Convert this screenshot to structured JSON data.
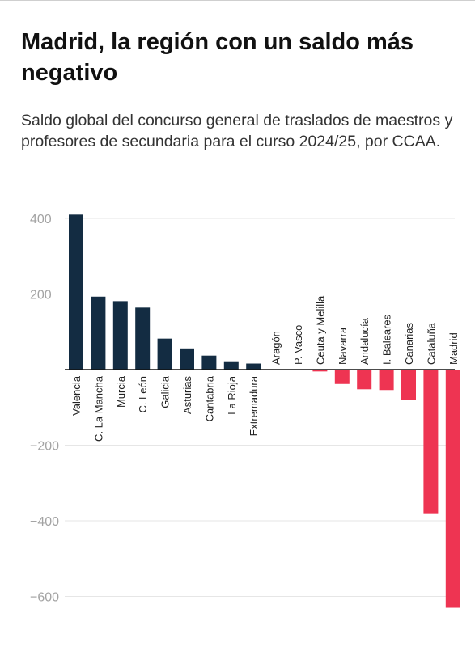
{
  "title": "Madrid, la región con un saldo más negativo",
  "subtitle": "Saldo global del concurso general de traslados de maestros y profesores de secundaria para el curso 2024/25, por CCAA.",
  "colors": {
    "positive": "#132c42",
    "negative": "#ee3452",
    "grid": "#e6e6e6",
    "axis": "#111111"
  },
  "chart_data": {
    "type": "bar",
    "orientation": "vertical",
    "categories": [
      "Valencia",
      "C. La Mancha",
      "Murcia",
      "C. León",
      "Galicia",
      "Asturias",
      "Cantabria",
      "La Rioja",
      "Extremadura",
      "Aragón",
      "P. Vasco",
      "Ceuta y Melilla",
      "Navarra",
      "Andalucía",
      "I. Baleares",
      "Canarias",
      "Cataluña",
      "Madrid"
    ],
    "values": [
      410,
      193,
      181,
      164,
      82,
      56,
      37,
      22,
      16,
      0,
      0,
      -5,
      -38,
      -52,
      -54,
      -80,
      -380,
      -630
    ],
    "ylim": [
      -640,
      420
    ],
    "yticks": [
      400,
      200,
      -200,
      -400,
      -600
    ],
    "ytick_labels": [
      "400",
      "200",
      "−200",
      "−400",
      "−600"
    ],
    "grid": true,
    "legend": "none"
  }
}
